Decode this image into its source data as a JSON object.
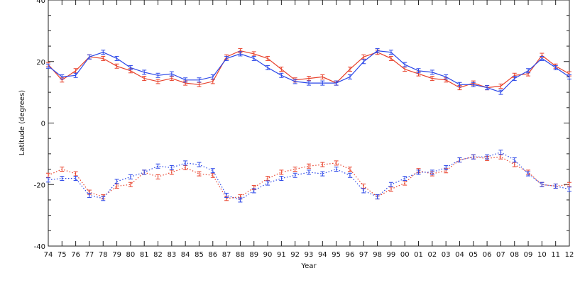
{
  "chart_data": {
    "type": "line",
    "title": "",
    "xlabel": "Year",
    "ylabel": "Latitude (degrees)",
    "xlim": [
      1974,
      2012
    ],
    "ylim": [
      -40,
      40
    ],
    "grid": false,
    "x_tick_labels": [
      "74",
      "75",
      "76",
      "77",
      "78",
      "79",
      "80",
      "81",
      "82",
      "83",
      "84",
      "85",
      "86",
      "87",
      "88",
      "89",
      "90",
      "91",
      "92",
      "93",
      "94",
      "95",
      "96",
      "97",
      "98",
      "99",
      "00",
      "01",
      "02",
      "03",
      "04",
      "05",
      "06",
      "07",
      "08",
      "09",
      "10",
      "11",
      "12"
    ],
    "y_ticks": [
      -40,
      -20,
      0,
      20,
      40
    ],
    "x": [
      1974,
      1975,
      1976,
      1977,
      1978,
      1979,
      1980,
      1981,
      1982,
      1983,
      1984,
      1985,
      1986,
      1987,
      1988,
      1989,
      1990,
      1991,
      1992,
      1993,
      1994,
      1995,
      1996,
      1997,
      1998,
      1999,
      2000,
      2001,
      2002,
      2003,
      2004,
      2005,
      2006,
      2007,
      2008,
      2009,
      2010,
      2011,
      2012
    ],
    "colors": {
      "red": "#e8402a",
      "blue": "#2a46e8"
    },
    "series": [
      {
        "color": "red",
        "dash": "solid",
        "values": [
          19,
          14,
          17,
          21.5,
          21,
          18.5,
          17,
          14.5,
          13.5,
          14.5,
          13,
          12.5,
          13.5,
          21.5,
          23.5,
          22.5,
          21,
          17.5,
          14,
          14.5,
          15,
          13,
          17.5,
          21.5,
          23,
          21,
          17.5,
          16,
          14.5,
          14,
          11.5,
          13,
          11.5,
          12,
          15.5,
          16,
          22,
          18.5,
          16
        ]
      },
      {
        "color": "blue",
        "dash": "solid",
        "values": [
          18.5,
          15,
          15.5,
          21.5,
          23,
          21,
          18,
          16.5,
          15.5,
          16,
          14,
          14,
          15,
          21,
          22.5,
          21,
          18,
          15.5,
          13.5,
          13,
          13,
          13,
          15,
          20,
          23.5,
          23,
          19,
          17,
          16.5,
          15,
          12.5,
          12.5,
          11.5,
          10,
          14.5,
          17,
          21,
          18,
          15
        ]
      },
      {
        "color": "red",
        "dash": "dotted",
        "values": [
          -17,
          -15,
          -16.5,
          -22.5,
          -24,
          -20.5,
          -20,
          -16,
          -17.5,
          -16,
          -14.5,
          -16.5,
          -17,
          -24.5,
          -24,
          -21,
          -18,
          -16,
          -15,
          -14,
          -13.5,
          -13,
          -15,
          -20.5,
          -24,
          -21.5,
          -19.5,
          -15.5,
          -16.5,
          -15.5,
          -12,
          -11,
          -11.5,
          -11,
          -13.5,
          -16,
          -20,
          -20.5,
          -20
        ]
      },
      {
        "color": "blue",
        "dash": "dotted",
        "values": [
          -18.5,
          -18,
          -18,
          -23.5,
          -24.5,
          -19,
          -17.5,
          -16,
          -14,
          -14.5,
          -13,
          -13.5,
          -15.5,
          -23.5,
          -25,
          -22,
          -19.5,
          -18,
          -17,
          -16,
          -16.5,
          -15,
          -17,
          -22,
          -24,
          -20,
          -18,
          -16,
          -16,
          -14.5,
          -12,
          -11,
          -11,
          -9.5,
          -12,
          -16.5,
          -20,
          -20.5,
          -21.5
        ]
      }
    ]
  }
}
